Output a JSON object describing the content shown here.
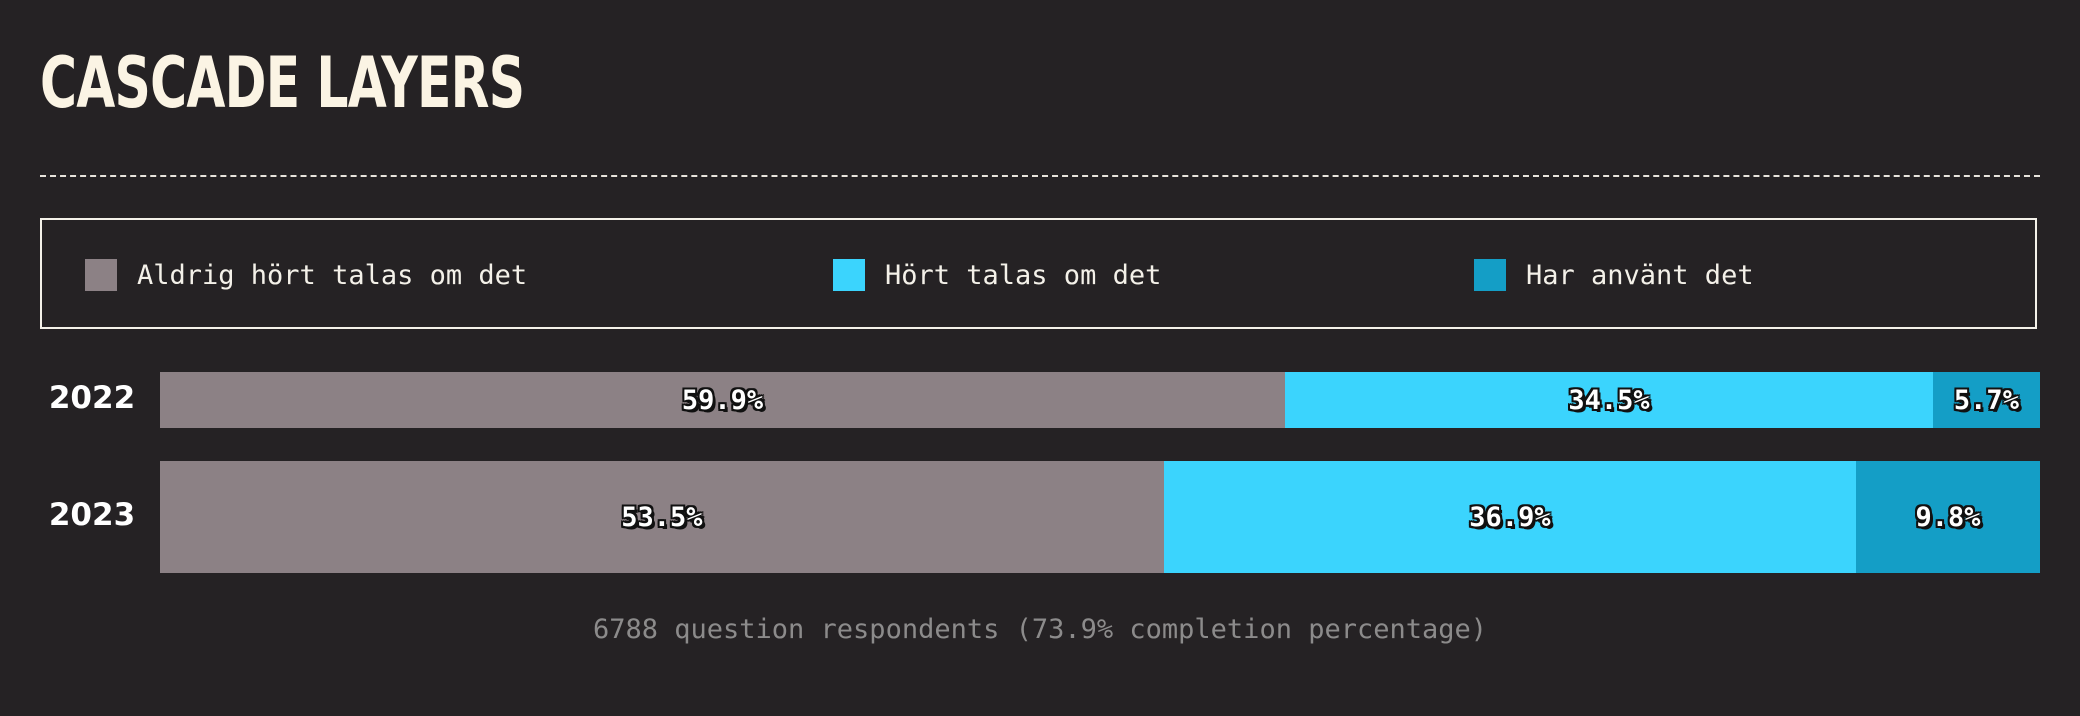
{
  "title": "CASCADE LAYERS",
  "legend": [
    {
      "label": "Aldrig hört talas om det",
      "color": "#8c8185"
    },
    {
      "label": "Hört talas om det",
      "color": "#3bd4fd"
    },
    {
      "label": "Har använt det",
      "color": "#149ec6"
    }
  ],
  "footnote": "6788 question respondents (73.9% completion percentage)",
  "chart_data": {
    "type": "bar",
    "orientation": "horizontal",
    "stacked": true,
    "title": "CASCADE LAYERS",
    "categories": [
      "2022",
      "2023"
    ],
    "series": [
      {
        "name": "Aldrig hört talas om det",
        "values": [
          59.9,
          53.5
        ],
        "labels": [
          "59.9%",
          "53.5%"
        ],
        "color": "#8c8185"
      },
      {
        "name": "Hört talas om det",
        "values": [
          34.5,
          36.9
        ],
        "labels": [
          "34.5%",
          "36.9%"
        ],
        "color": "#3bd4fd"
      },
      {
        "name": "Har använt det",
        "values": [
          5.7,
          9.8
        ],
        "labels": [
          "5.7%",
          "9.8%"
        ],
        "color": "#149ec6"
      }
    ],
    "xlim": [
      0,
      100
    ],
    "unit": "%",
    "grid": false,
    "legend_position": "top"
  }
}
